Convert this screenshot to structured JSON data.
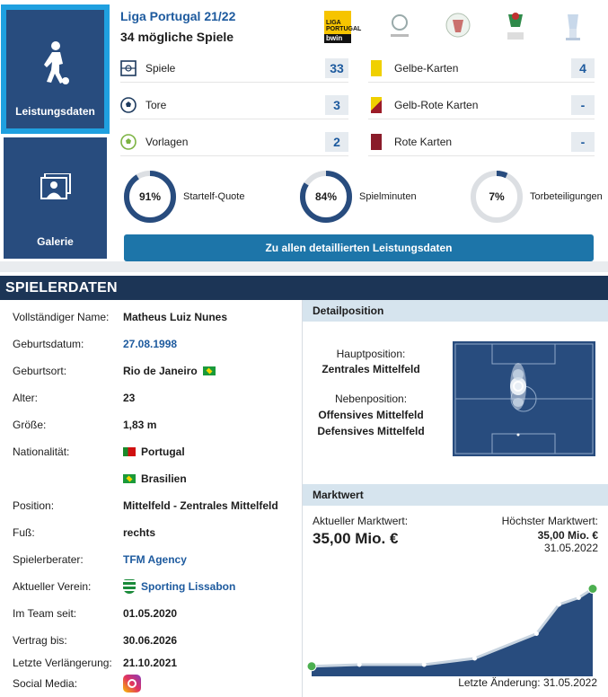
{
  "tiles": {
    "performance_label": "Leistungsdaten",
    "gallery_label": "Galerie"
  },
  "season": {
    "competition": "Liga Portugal 21/22",
    "possible_games": "34 mögliche Spiele",
    "logo_text_1": "LIGA PORTUGAL",
    "logo_text_2": "bwin"
  },
  "stats_left": [
    {
      "icon": "pitch-icon",
      "name": "Spiele",
      "value": "33"
    },
    {
      "icon": "ball-icon",
      "name": "Tore",
      "value": "3"
    },
    {
      "icon": "assist-ball-icon",
      "name": "Vorlagen",
      "value": "2"
    }
  ],
  "stats_right": [
    {
      "icon": "yellow-card-icon",
      "name": "Gelbe-Karten",
      "value": "4"
    },
    {
      "icon": "yellow-red-card-icon",
      "name": "Gelb-Rote Karten",
      "value": "-"
    },
    {
      "icon": "red-card-icon",
      "name": "Rote Karten",
      "value": "-"
    }
  ],
  "gauges": [
    {
      "label": "Startelf-Quote",
      "text": "91%",
      "percent": 91
    },
    {
      "label": "Spielminuten",
      "text": "84%",
      "percent": 84
    },
    {
      "label": "Torbeteiligungen",
      "text": "7%",
      "percent": 7
    }
  ],
  "detail_button": "Zu allen detaillierten Leistungsdaten",
  "section_title": "SPIELERDATEN",
  "player": {
    "rows": [
      {
        "key": "Vollständiger Name:",
        "value": "Matheus Luiz Nunes",
        "link": false
      },
      {
        "key": "Geburtsdatum:",
        "value": "27.08.1998",
        "link": true
      },
      {
        "key": "Geburtsort:",
        "value": "Rio de Janeiro",
        "link": false,
        "flag": "br"
      },
      {
        "key": "Alter:",
        "value": "23",
        "link": false
      },
      {
        "key": "Größe:",
        "value": "1,83 m",
        "link": false
      },
      {
        "key": "Nationalität:",
        "value": "Portugal",
        "link": false,
        "flag_before": "pt"
      },
      {
        "key": "",
        "value": "Brasilien",
        "link": false,
        "flag_before": "br"
      },
      {
        "key": "Position:",
        "value": "Mittelfeld - Zentrales Mittelfeld",
        "link": false
      },
      {
        "key": "Fuß:",
        "value": "rechts",
        "link": false
      },
      {
        "key": "Spielerberater:",
        "value": "TFM Agency",
        "link": true
      },
      {
        "key": "Aktueller Verein:",
        "value": "Sporting Lissabon",
        "link": true,
        "club_icon": true
      },
      {
        "key": "Im Team seit:",
        "value": "01.05.2020",
        "link": false
      },
      {
        "key": "Vertrag bis:",
        "value": "30.06.2026",
        "link": false
      },
      {
        "key": "Letzte Verlängerung:",
        "value": "21.10.2021",
        "link": false
      },
      {
        "key": "Social Media:",
        "value": "",
        "link": false,
        "instagram": true
      }
    ]
  },
  "position_panel": {
    "title": "Detailposition",
    "main_label": "Hauptposition:",
    "main_value": "Zentrales Mittelfeld",
    "secondary_label": "Nebenposition:",
    "secondary_1": "Offensives Mittelfeld",
    "secondary_2": "Defensives Mittelfeld"
  },
  "market_value": {
    "title": "Marktwert",
    "current_label": "Aktueller Marktwert:",
    "current_value": "35,00 Mio. €",
    "highest_label": "Höchster Marktwert:",
    "highest_value": "35,00 Mio. €",
    "highest_date": "31.05.2022",
    "last_change": "Letzte Änderung: 31.05.2022"
  },
  "chart_data": {
    "type": "area",
    "x": [
      0,
      1,
      2,
      3,
      4,
      5,
      6,
      7
    ],
    "values": [
      0.5,
      1.2,
      1.2,
      4.0,
      15.0,
      28.0,
      31.0,
      35.0
    ],
    "ylim": [
      0,
      40
    ],
    "xlabel": "",
    "ylabel": "",
    "grid": false,
    "colors": {
      "fill": "#284c7e",
      "line": "#c8d4e0",
      "point": "#ffffff"
    }
  }
}
